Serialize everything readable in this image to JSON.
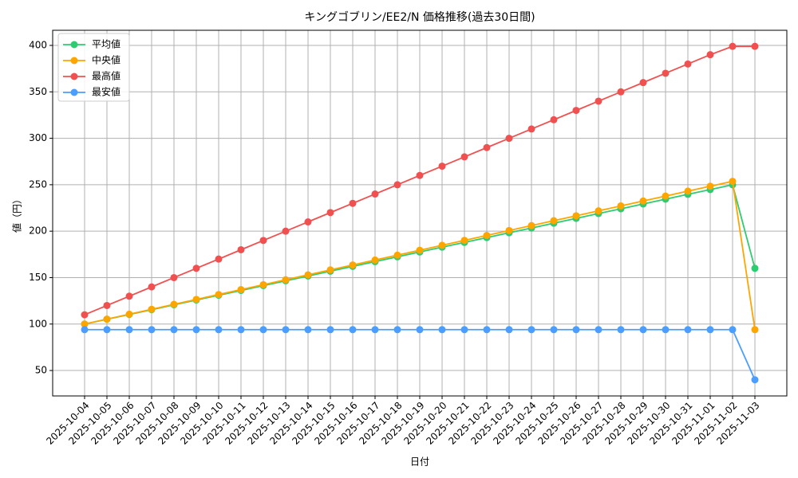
{
  "chart_data": {
    "type": "line",
    "title": "キングゴブリン/EE2/N 価格推移(過去30日間)",
    "x_label": "日付",
    "y_label": "値（円）",
    "categories": [
      "2025-10-04",
      "2025-10-05",
      "2025-10-06",
      "2025-10-07",
      "2025-10-08",
      "2025-10-09",
      "2025-10-10",
      "2025-10-11",
      "2025-10-12",
      "2025-10-13",
      "2025-10-14",
      "2025-10-15",
      "2025-10-16",
      "2025-10-17",
      "2025-10-18",
      "2025-10-19",
      "2025-10-20",
      "2025-10-21",
      "2025-10-22",
      "2025-10-23",
      "2025-10-24",
      "2025-10-25",
      "2025-10-26",
      "2025-10-27",
      "2025-10-28",
      "2025-10-29",
      "2025-10-30",
      "2025-10-31",
      "2025-11-01",
      "2025-11-02",
      "2025-11-03"
    ],
    "series": [
      {
        "name": "平均値",
        "color": "#2ecc71",
        "values": [
          100,
          105.2,
          110.3,
          115.5,
          120.7,
          125.9,
          131,
          136.2,
          141.4,
          146.6,
          151.7,
          156.9,
          162.1,
          167.2,
          172.4,
          177.6,
          182.8,
          187.9,
          193.1,
          198.3,
          203.4,
          208.6,
          213.8,
          219,
          224.1,
          229.3,
          234.5,
          239.7,
          244.8,
          250,
          160
        ]
      },
      {
        "name": "中央値",
        "color": "#ffa500",
        "values": [
          100,
          105.3,
          110.6,
          115.9,
          121.2,
          126.5,
          131.8,
          137.1,
          142.4,
          147.7,
          153,
          158.3,
          163.6,
          168.9,
          174.2,
          179.5,
          184.8,
          190.1,
          195.4,
          200.7,
          206,
          211.3,
          216.6,
          221.9,
          227.2,
          232.5,
          237.8,
          243.1,
          248.4,
          253.7,
          94
        ]
      },
      {
        "name": "最高値",
        "color": "#f05050",
        "values": [
          110,
          120,
          130,
          140,
          150,
          160,
          170,
          180,
          190,
          200,
          210,
          220,
          230,
          240,
          250,
          260,
          270,
          280,
          290,
          300,
          310,
          320,
          330,
          340,
          350,
          360,
          370,
          380,
          390,
          399,
          399
        ]
      },
      {
        "name": "最安値",
        "color": "#4a9eff",
        "values": [
          94,
          94,
          94,
          94,
          94,
          94,
          94,
          94,
          94,
          94,
          94,
          94,
          94,
          94,
          94,
          94,
          94,
          94,
          94,
          94,
          94,
          94,
          94,
          94,
          94,
          94,
          94,
          94,
          94,
          94,
          40
        ]
      }
    ],
    "ylim": [
      22.6,
      416.3
    ],
    "yticks": [
      50,
      100,
      150,
      200,
      250,
      300,
      350,
      400
    ],
    "grid": true,
    "legend": "upper left"
  }
}
